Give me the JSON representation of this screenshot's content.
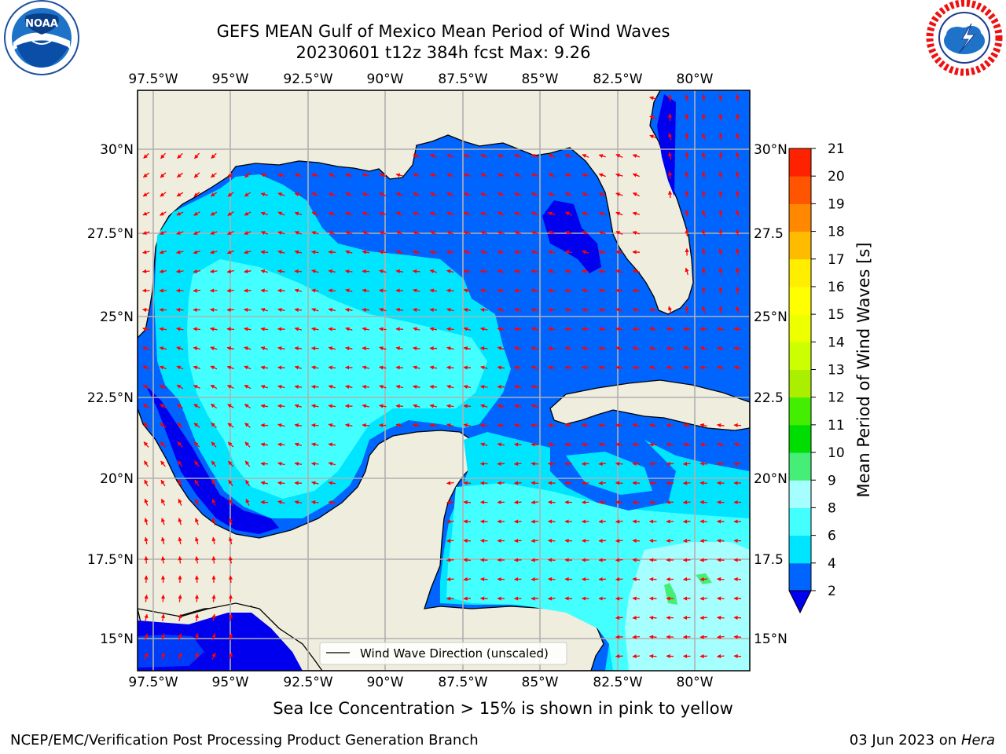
{
  "header": {
    "title_line1": "GEFS MEAN Gulf of Mexico Mean Period of Wind Waves",
    "title_line2": "20230601 t12z 384h fcst   Max: 9.26"
  },
  "logos": {
    "left": {
      "name": "NOAA",
      "ring_text": "NATIONAL OCEANIC AND ATMOSPHERIC ADMINISTRATION",
      "bottom_text": "U.S. DEPARTMENT OF COMMERCE"
    },
    "right": {
      "ring_text": "NATIONAL WEATHER SERVICE"
    }
  },
  "map": {
    "lon_ticks_top": [
      "97.5°W",
      "95°W",
      "92.5°W",
      "90°W",
      "87.5°W",
      "85°W",
      "82.5°W",
      "80°W"
    ],
    "lon_ticks_bottom": [
      "97.5°W",
      "95°W",
      "92.5°W",
      "90°W",
      "87.5°W",
      "85°W",
      "82.5°W",
      "80°W"
    ],
    "lat_ticks_left": [
      "30°N",
      "27.5°N",
      "25°N",
      "22.5°N",
      "20°N",
      "17.5°N",
      "15°N"
    ],
    "lat_ticks_right": [
      "30°N",
      "27.5",
      "25°N",
      "22.5",
      "20°N",
      "17.5",
      "15°N"
    ],
    "legend_label": "Wind Wave Direction (unscaled)",
    "colors": {
      "land": "#efedde",
      "coast": "#000000",
      "grid": "#b0b0b0",
      "arrow": "#ff0000"
    }
  },
  "colorbar": {
    "label": "Mean Period of Wind Waves [s]",
    "ticks": [
      "2",
      "4",
      "6",
      "8",
      "9",
      "10",
      "11",
      "12",
      "13",
      "14",
      "15",
      "16",
      "17",
      "18",
      "19",
      "20",
      "21"
    ],
    "colors": [
      "#0064ff",
      "#00e5ff",
      "#44ffff",
      "#a6ffff",
      "#44ee77",
      "#00dd00",
      "#44ee00",
      "#aaee00",
      "#ccff00",
      "#eeff00",
      "#ffff00",
      "#ffee00",
      "#ffbb00",
      "#ff8800",
      "#ff5500",
      "#ff2200"
    ],
    "under_color": "#0000ee"
  },
  "note": "Sea Ice Concentration > 15% is shown in pink to yellow",
  "footer": {
    "left": "NCEP/EMC/Verification Post Processing Product Generation Branch",
    "date": "03 Jun 2023 on ",
    "machine": "Hera"
  }
}
